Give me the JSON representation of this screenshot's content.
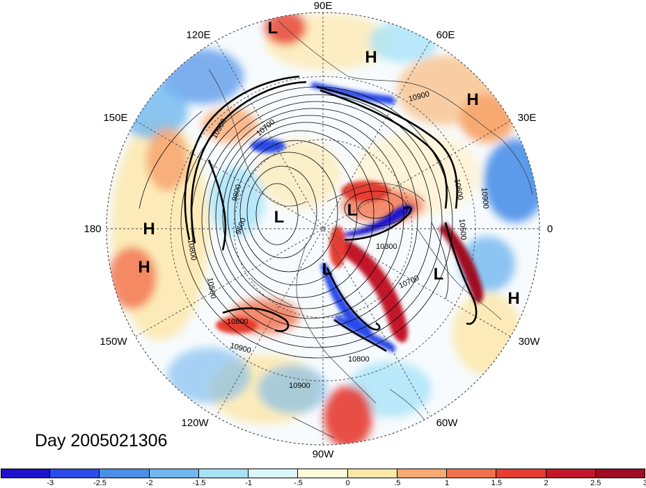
{
  "map": {
    "projection": "north-polar-stereographic",
    "longitude_labels": {
      "top": "90E",
      "upper_right_1": "60E",
      "upper_right_2": "30E",
      "right": "0",
      "lower_right_1": "30W",
      "lower_right_2": "60W",
      "bottom": "90W",
      "lower_left_1": "120W",
      "lower_left_2": "150W",
      "left": "180",
      "upper_left_1": "150E",
      "upper_left_2": "120E"
    },
    "pressure_centers": [
      {
        "label": "L",
        "region": "east-siberia-top"
      },
      {
        "label": "H",
        "region": "west-siberia"
      },
      {
        "label": "H",
        "region": "urals"
      },
      {
        "label": "H",
        "region": "dateline-north"
      },
      {
        "label": "H",
        "region": "dateline-south"
      },
      {
        "label": "L",
        "region": "arctic-canada"
      },
      {
        "label": "L",
        "region": "arctic-greenland-side"
      },
      {
        "label": "L",
        "region": "hudson-bay"
      },
      {
        "label": "L",
        "region": "north-atlantic"
      },
      {
        "label": "H",
        "region": "subtropical-atlantic"
      }
    ],
    "contour_labels": [
      "10900",
      "10900",
      "10900",
      "10900",
      "10900",
      "10800",
      "10800",
      "10800",
      "9800",
      "9600",
      "10700",
      "10700",
      "10600",
      "10500",
      "10500",
      "10300"
    ],
    "colors": {
      "ocean_base": "#f6fbff",
      "land_lines": "#333333",
      "grid_lines": "#444444"
    }
  },
  "day_label": "Day 2005021306",
  "colorbar": {
    "tick_labels": [
      "-3",
      "-2.5",
      "-2",
      "-1.5",
      "-1",
      "-.5",
      "0",
      ".5",
      "1",
      "1.5",
      "2",
      "2.5",
      "3"
    ],
    "colors": [
      "#1c12cc",
      "#2b4bea",
      "#4a8fe8",
      "#71b6ef",
      "#a7e3f7",
      "#dbf6fc",
      "#fefadb",
      "#fde7a8",
      "#f7a972",
      "#f1714e",
      "#e53c31",
      "#c4162a",
      "#a00a23"
    ]
  }
}
